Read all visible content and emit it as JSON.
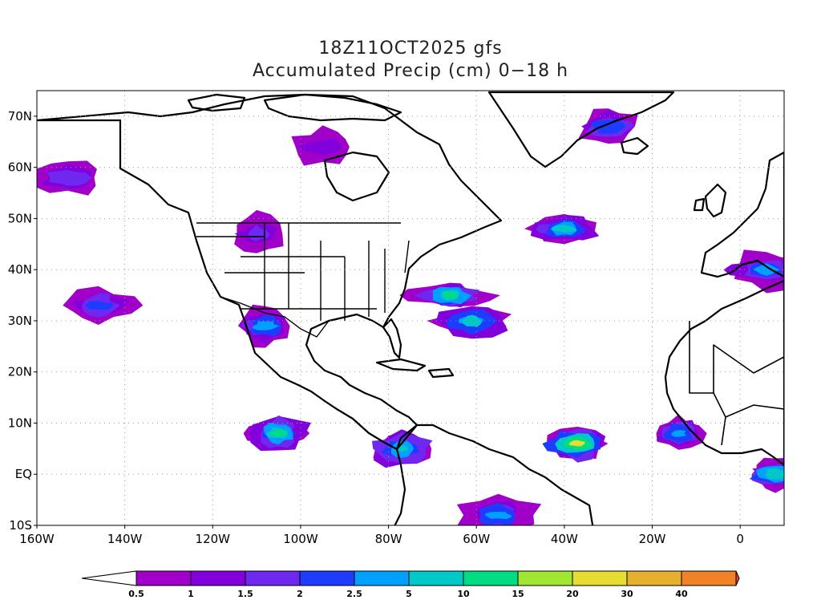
{
  "title": {
    "line1": "18Z11OCT2025 gfs",
    "line2": "Accumulated Precip (cm) 0−18 h"
  },
  "map": {
    "lon_range": [
      -160,
      10
    ],
    "lat_range": [
      -10,
      75
    ],
    "x_tick_labels": [
      {
        "lon": -160,
        "label": "160W"
      },
      {
        "lon": -140,
        "label": "140W"
      },
      {
        "lon": -120,
        "label": "120W"
      },
      {
        "lon": -100,
        "label": "100W"
      },
      {
        "lon": -80,
        "label": "80W"
      },
      {
        "lon": -60,
        "label": "60W"
      },
      {
        "lon": -40,
        "label": "40W"
      },
      {
        "lon": -20,
        "label": "20W"
      },
      {
        "lon": 0,
        "label": "0"
      }
    ],
    "y_tick_labels": [
      {
        "lat": -10,
        "label": "10S"
      },
      {
        "lat": 0,
        "label": "EQ"
      },
      {
        "lat": 10,
        "label": "10N"
      },
      {
        "lat": 20,
        "label": "20N"
      },
      {
        "lat": 30,
        "label": "30N"
      },
      {
        "lat": 40,
        "label": "40N"
      },
      {
        "lat": 50,
        "label": "50N"
      },
      {
        "lat": 60,
        "label": "60N"
      },
      {
        "lat": 70,
        "label": "70N"
      }
    ],
    "grid": "dotted",
    "land_outline_color": "#000000"
  },
  "colorbar": {
    "colors": [
      "#ffffff",
      "#a000c8",
      "#8200dc",
      "#6e28f0",
      "#1e3cff",
      "#00a0ff",
      "#00c8c8",
      "#00dc82",
      "#a0e632",
      "#e6dc32",
      "#e6af2d",
      "#f08228",
      "#fa3c3c"
    ],
    "labels": [
      "0.5",
      "1",
      "1.5",
      "2",
      "2.5",
      "5",
      "10",
      "15",
      "20",
      "30",
      "40"
    ]
  },
  "precip_regions": [
    {
      "id": "hawaii-nw",
      "lon": -146,
      "lat": 33,
      "level": 4
    },
    {
      "id": "gulf-alaska",
      "lon": -153,
      "lat": 58,
      "level": 3
    },
    {
      "id": "hudson-north",
      "lon": -95,
      "lat": 64,
      "level": 2
    },
    {
      "id": "greenland-east",
      "lon": -30,
      "lat": 68,
      "level": 4
    },
    {
      "id": "pacific-nw",
      "lon": -110,
      "lat": 47,
      "level": 3
    },
    {
      "id": "baja-mexico",
      "lon": -108,
      "lat": 29,
      "level": 5
    },
    {
      "id": "us-east-coast-low",
      "lon": -66,
      "lat": 35,
      "level": 7
    },
    {
      "id": "atlantic-central",
      "lon": -61,
      "lat": 30,
      "level": 6
    },
    {
      "id": "north-atlantic-50n",
      "lon": -40,
      "lat": 48,
      "level": 6
    },
    {
      "id": "e-pacific-itcz",
      "lon": -105,
      "lat": 8,
      "level": 7
    },
    {
      "id": "atlantic-itcz",
      "lon": -37,
      "lat": 6,
      "level": 9
    },
    {
      "id": "caribbean-s-america",
      "lon": -77,
      "lat": 5,
      "level": 6
    },
    {
      "id": "west-africa",
      "lon": -14,
      "lat": 8,
      "level": 5
    },
    {
      "id": "gulf-guinea",
      "lon": 8,
      "lat": 0,
      "level": 6
    },
    {
      "id": "brazil-south",
      "lon": -55,
      "lat": -8,
      "level": 5
    },
    {
      "id": "iberia-med",
      "lon": 6,
      "lat": 40,
      "level": 5
    }
  ]
}
